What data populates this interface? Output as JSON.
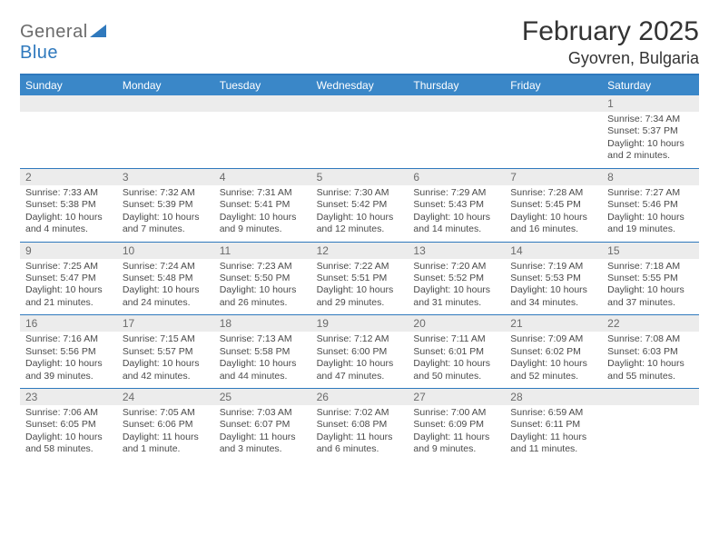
{
  "logo": {
    "word1": "General",
    "word2": "Blue",
    "triangle_color": "#2f79bd"
  },
  "title": "February 2025",
  "location": "Gyovren, Bulgaria",
  "colors": {
    "header_bg": "#3a87c8",
    "accent_border": "#2f79bd",
    "band_bg": "#ececec",
    "text_dark": "#333333",
    "text_muted": "#6b6b6b",
    "body_text": "#4a4a4a"
  },
  "day_names": [
    "Sunday",
    "Monday",
    "Tuesday",
    "Wednesday",
    "Thursday",
    "Friday",
    "Saturday"
  ],
  "weeks": [
    [
      {
        "date": "",
        "lines": [
          "",
          "",
          "",
          ""
        ]
      },
      {
        "date": "",
        "lines": [
          "",
          "",
          "",
          ""
        ]
      },
      {
        "date": "",
        "lines": [
          "",
          "",
          "",
          ""
        ]
      },
      {
        "date": "",
        "lines": [
          "",
          "",
          "",
          ""
        ]
      },
      {
        "date": "",
        "lines": [
          "",
          "",
          "",
          ""
        ]
      },
      {
        "date": "",
        "lines": [
          "",
          "",
          "",
          ""
        ]
      },
      {
        "date": "1",
        "lines": [
          "Sunrise: 7:34 AM",
          "Sunset: 5:37 PM",
          "Daylight: 10 hours",
          "and 2 minutes."
        ]
      }
    ],
    [
      {
        "date": "2",
        "lines": [
          "Sunrise: 7:33 AM",
          "Sunset: 5:38 PM",
          "Daylight: 10 hours",
          "and 4 minutes."
        ]
      },
      {
        "date": "3",
        "lines": [
          "Sunrise: 7:32 AM",
          "Sunset: 5:39 PM",
          "Daylight: 10 hours",
          "and 7 minutes."
        ]
      },
      {
        "date": "4",
        "lines": [
          "Sunrise: 7:31 AM",
          "Sunset: 5:41 PM",
          "Daylight: 10 hours",
          "and 9 minutes."
        ]
      },
      {
        "date": "5",
        "lines": [
          "Sunrise: 7:30 AM",
          "Sunset: 5:42 PM",
          "Daylight: 10 hours",
          "and 12 minutes."
        ]
      },
      {
        "date": "6",
        "lines": [
          "Sunrise: 7:29 AM",
          "Sunset: 5:43 PM",
          "Daylight: 10 hours",
          "and 14 minutes."
        ]
      },
      {
        "date": "7",
        "lines": [
          "Sunrise: 7:28 AM",
          "Sunset: 5:45 PM",
          "Daylight: 10 hours",
          "and 16 minutes."
        ]
      },
      {
        "date": "8",
        "lines": [
          "Sunrise: 7:27 AM",
          "Sunset: 5:46 PM",
          "Daylight: 10 hours",
          "and 19 minutes."
        ]
      }
    ],
    [
      {
        "date": "9",
        "lines": [
          "Sunrise: 7:25 AM",
          "Sunset: 5:47 PM",
          "Daylight: 10 hours",
          "and 21 minutes."
        ]
      },
      {
        "date": "10",
        "lines": [
          "Sunrise: 7:24 AM",
          "Sunset: 5:48 PM",
          "Daylight: 10 hours",
          "and 24 minutes."
        ]
      },
      {
        "date": "11",
        "lines": [
          "Sunrise: 7:23 AM",
          "Sunset: 5:50 PM",
          "Daylight: 10 hours",
          "and 26 minutes."
        ]
      },
      {
        "date": "12",
        "lines": [
          "Sunrise: 7:22 AM",
          "Sunset: 5:51 PM",
          "Daylight: 10 hours",
          "and 29 minutes."
        ]
      },
      {
        "date": "13",
        "lines": [
          "Sunrise: 7:20 AM",
          "Sunset: 5:52 PM",
          "Daylight: 10 hours",
          "and 31 minutes."
        ]
      },
      {
        "date": "14",
        "lines": [
          "Sunrise: 7:19 AM",
          "Sunset: 5:53 PM",
          "Daylight: 10 hours",
          "and 34 minutes."
        ]
      },
      {
        "date": "15",
        "lines": [
          "Sunrise: 7:18 AM",
          "Sunset: 5:55 PM",
          "Daylight: 10 hours",
          "and 37 minutes."
        ]
      }
    ],
    [
      {
        "date": "16",
        "lines": [
          "Sunrise: 7:16 AM",
          "Sunset: 5:56 PM",
          "Daylight: 10 hours",
          "and 39 minutes."
        ]
      },
      {
        "date": "17",
        "lines": [
          "Sunrise: 7:15 AM",
          "Sunset: 5:57 PM",
          "Daylight: 10 hours",
          "and 42 minutes."
        ]
      },
      {
        "date": "18",
        "lines": [
          "Sunrise: 7:13 AM",
          "Sunset: 5:58 PM",
          "Daylight: 10 hours",
          "and 44 minutes."
        ]
      },
      {
        "date": "19",
        "lines": [
          "Sunrise: 7:12 AM",
          "Sunset: 6:00 PM",
          "Daylight: 10 hours",
          "and 47 minutes."
        ]
      },
      {
        "date": "20",
        "lines": [
          "Sunrise: 7:11 AM",
          "Sunset: 6:01 PM",
          "Daylight: 10 hours",
          "and 50 minutes."
        ]
      },
      {
        "date": "21",
        "lines": [
          "Sunrise: 7:09 AM",
          "Sunset: 6:02 PM",
          "Daylight: 10 hours",
          "and 52 minutes."
        ]
      },
      {
        "date": "22",
        "lines": [
          "Sunrise: 7:08 AM",
          "Sunset: 6:03 PM",
          "Daylight: 10 hours",
          "and 55 minutes."
        ]
      }
    ],
    [
      {
        "date": "23",
        "lines": [
          "Sunrise: 7:06 AM",
          "Sunset: 6:05 PM",
          "Daylight: 10 hours",
          "and 58 minutes."
        ]
      },
      {
        "date": "24",
        "lines": [
          "Sunrise: 7:05 AM",
          "Sunset: 6:06 PM",
          "Daylight: 11 hours",
          "and 1 minute."
        ]
      },
      {
        "date": "25",
        "lines": [
          "Sunrise: 7:03 AM",
          "Sunset: 6:07 PM",
          "Daylight: 11 hours",
          "and 3 minutes."
        ]
      },
      {
        "date": "26",
        "lines": [
          "Sunrise: 7:02 AM",
          "Sunset: 6:08 PM",
          "Daylight: 11 hours",
          "and 6 minutes."
        ]
      },
      {
        "date": "27",
        "lines": [
          "Sunrise: 7:00 AM",
          "Sunset: 6:09 PM",
          "Daylight: 11 hours",
          "and 9 minutes."
        ]
      },
      {
        "date": "28",
        "lines": [
          "Sunrise: 6:59 AM",
          "Sunset: 6:11 PM",
          "Daylight: 11 hours",
          "and 11 minutes."
        ]
      },
      {
        "date": "",
        "lines": [
          "",
          "",
          "",
          ""
        ]
      }
    ]
  ]
}
